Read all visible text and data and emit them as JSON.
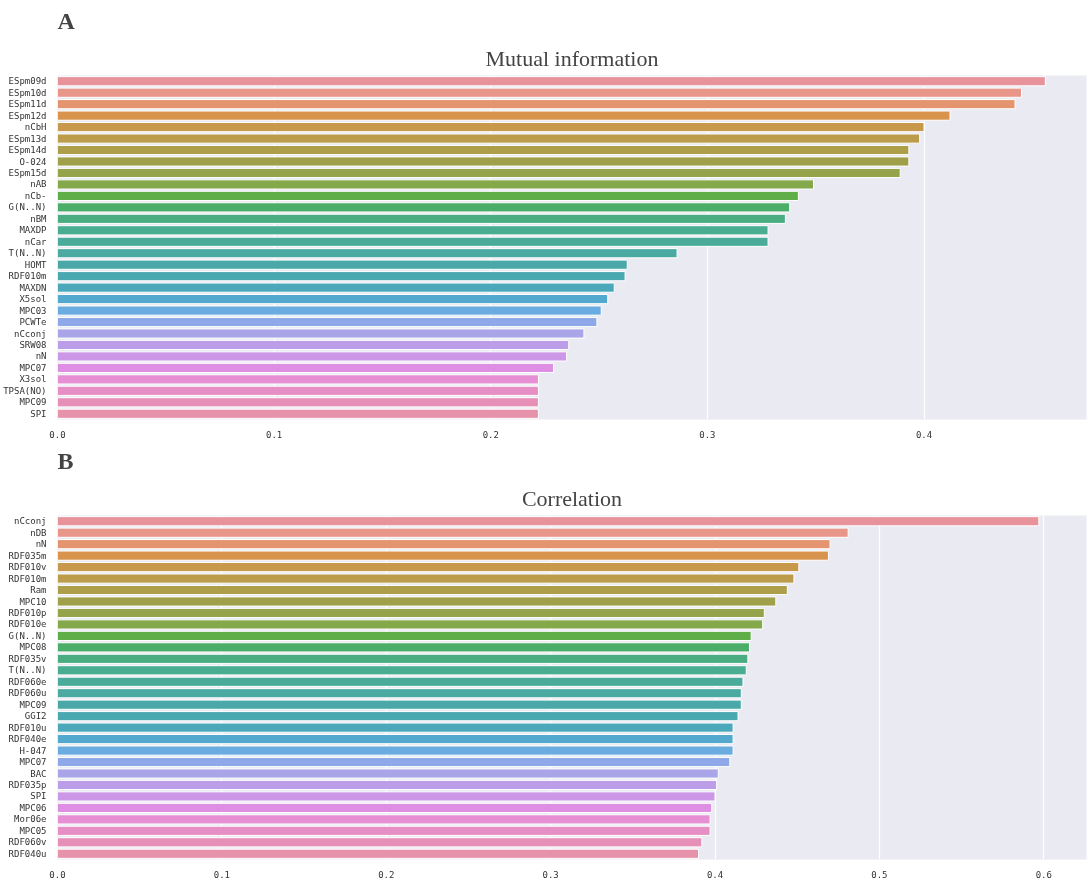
{
  "chart_data": [
    {
      "type": "bar",
      "orientation": "horizontal",
      "title": "Mutual information",
      "annotations": [
        "A"
      ],
      "grid": "x",
      "categories": [
        "ESpm09d",
        "ESpm10d",
        "ESpm11d",
        "ESpm12d",
        "nCbH",
        "ESpm13d",
        "ESpm14d",
        "O-024",
        "ESpm15d",
        "nAB",
        "nCb-",
        "G(N..N)",
        "nBM",
        "MAXDP",
        "nCar",
        "T(N..N)",
        "HOMT",
        "RDF010m",
        "MAXDN",
        "X5sol",
        "MPC03",
        "PCWTe",
        "nCconj",
        "SRW08",
        "nN",
        "MPC07",
        "X3sol",
        "TPSA(NO)",
        "MPC09",
        "SPI"
      ],
      "values": [
        0.456,
        0.445,
        0.442,
        0.412,
        0.4,
        0.398,
        0.393,
        0.393,
        0.389,
        0.349,
        0.342,
        0.338,
        0.336,
        0.328,
        0.328,
        0.286,
        0.263,
        0.262,
        0.257,
        0.254,
        0.251,
        0.249,
        0.243,
        0.236,
        0.235,
        0.229,
        0.222,
        0.222,
        0.222,
        0.222
      ],
      "colors": [
        "#e8939b",
        "#e8958a",
        "#e4956f",
        "#d8934c",
        "#c9994b",
        "#bb9c4a",
        "#ad9e4a",
        "#a1a04a",
        "#95a34a",
        "#84a84a",
        "#5fae48",
        "#4aae68",
        "#4aad82",
        "#4aac91",
        "#4aab9a",
        "#4aaaa1",
        "#4aa9a8",
        "#4aa8b0",
        "#4ba8bb",
        "#52a9cd",
        "#6aabe0",
        "#8ea8e8",
        "#a9a5e8",
        "#bc9ee8",
        "#cc97e6",
        "#de8fe4",
        "#e68fd4",
        "#e68fc5",
        "#e690b8",
        "#e692ab"
      ],
      "xlim": [
        0,
        0.475
      ],
      "xticks": [
        {
          "value": 0,
          "label": "0.0"
        },
        0.1,
        0.2,
        0.3,
        0.4
      ]
    },
    {
      "type": "bar",
      "orientation": "horizontal",
      "title": "Correlation",
      "annotations": [
        "B"
      ],
      "grid": "x",
      "categories": [
        "nCconj",
        "nDB",
        "nN",
        "RDF035m",
        "RDF010v",
        "RDF010m",
        "Ram",
        "MPC10",
        "RDF010p",
        "RDF010e",
        "G(N..N)",
        "MPC08",
        "RDF035v",
        "T(N..N)",
        "RDF060e",
        "RDF060u",
        "MPC09",
        "GGI2",
        "RDF010u",
        "RDF040e",
        "H-047",
        "MPC07",
        "BAC",
        "RDF035p",
        "SPI",
        "MPC06",
        "Mor06e",
        "MPC05",
        "RDF060v",
        "RDF040u"
      ],
      "values": [
        0.597,
        0.481,
        0.47,
        0.469,
        0.451,
        0.448,
        0.444,
        0.437,
        0.43,
        0.429,
        0.422,
        0.421,
        0.42,
        0.419,
        0.417,
        0.416,
        0.416,
        0.414,
        0.411,
        0.411,
        0.411,
        0.409,
        0.402,
        0.401,
        0.4,
        0.398,
        0.397,
        0.397,
        0.392,
        0.39
      ],
      "colors": [
        "#e8939b",
        "#e8958a",
        "#e4956f",
        "#d8934c",
        "#c9994b",
        "#bb9c4a",
        "#ad9e4a",
        "#a1a04a",
        "#95a34a",
        "#84a84a",
        "#5fae48",
        "#4aae68",
        "#4aad82",
        "#4aac91",
        "#4aab9a",
        "#4aaaa1",
        "#4aa9a8",
        "#4aa8b0",
        "#4ba8bb",
        "#52a9cd",
        "#6aabe0",
        "#8ea8e8",
        "#a9a5e8",
        "#bc9ee8",
        "#cc97e6",
        "#de8fe4",
        "#e68fd4",
        "#e68fc5",
        "#e690b8",
        "#e692ab"
      ],
      "xlim": [
        0,
        0.626
      ],
      "xticks": [
        {
          "value": 0,
          "label": "0.0"
        },
        0.1,
        0.2,
        0.3,
        0.4,
        0.5,
        0.6
      ]
    }
  ]
}
